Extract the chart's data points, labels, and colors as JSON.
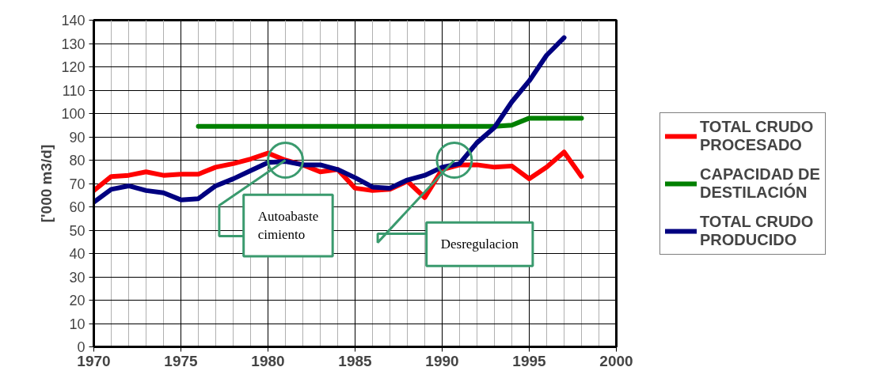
{
  "chart_data": {
    "type": "line",
    "ylabel": "['000 m3/d]",
    "xlim": [
      1970,
      2000
    ],
    "xticks": [
      1970,
      1975,
      1980,
      1985,
      1990,
      1995,
      2000
    ],
    "ylim": [
      0,
      140
    ],
    "yticks": [
      0,
      10,
      20,
      30,
      40,
      50,
      60,
      70,
      80,
      90,
      100,
      110,
      120,
      130,
      140
    ],
    "grid": true,
    "legend": "right",
    "series": [
      {
        "name": "TOTAL CRUDO PROCESADO",
        "color": "#ff0000",
        "x": [
          1970,
          1971,
          1972,
          1973,
          1974,
          1975,
          1976,
          1977,
          1978,
          1979,
          1980,
          1981,
          1982,
          1983,
          1984,
          1985,
          1986,
          1987,
          1988,
          1989,
          1990,
          1991,
          1992,
          1993,
          1994,
          1995,
          1996,
          1997,
          1998
        ],
        "values": [
          67,
          73,
          73.5,
          75,
          73.5,
          74,
          74,
          77,
          78.5,
          80.5,
          83,
          80,
          78,
          75,
          76,
          68,
          67,
          67.5,
          71,
          64,
          76,
          78,
          78,
          77,
          77.5,
          72,
          77,
          83.5,
          73
        ]
      },
      {
        "name": "CAPACIDAD DE DESTILACIÓN",
        "color": "#008000",
        "x": [
          1976,
          1977,
          1978,
          1979,
          1980,
          1981,
          1982,
          1983,
          1984,
          1985,
          1986,
          1987,
          1988,
          1989,
          1990,
          1991,
          1992,
          1993,
          1994,
          1995,
          1996,
          1997,
          1998
        ],
        "values": [
          94.5,
          94.5,
          94.5,
          94.5,
          94.5,
          94.5,
          94.5,
          94.5,
          94.5,
          94.5,
          94.5,
          94.5,
          94.5,
          94.5,
          94.5,
          94.5,
          94.5,
          94.5,
          95,
          98,
          98,
          98,
          98
        ]
      },
      {
        "name": "TOTAL CRUDO PRODUCIDO",
        "color": "#000080",
        "x": [
          1970,
          1971,
          1972,
          1973,
          1974,
          1975,
          1976,
          1977,
          1978,
          1979,
          1980,
          1981,
          1982,
          1983,
          1984,
          1985,
          1986,
          1987,
          1988,
          1989,
          1990,
          1991,
          1992,
          1993,
          1994,
          1995,
          1996,
          1997
        ],
        "values": [
          62,
          67.5,
          69,
          67,
          66,
          63,
          63.5,
          69,
          72,
          75.5,
          79,
          79.5,
          78,
          78,
          76,
          72.5,
          68.5,
          68,
          71.5,
          73.5,
          77,
          78.5,
          87.5,
          94,
          105,
          114,
          125,
          132.5
        ]
      }
    ],
    "annotations": [
      {
        "text": "Autoabaste cimiento",
        "x": 1981,
        "y": 80
      },
      {
        "text": "Desregulacion",
        "x": 1990.7,
        "y": 80
      }
    ]
  }
}
